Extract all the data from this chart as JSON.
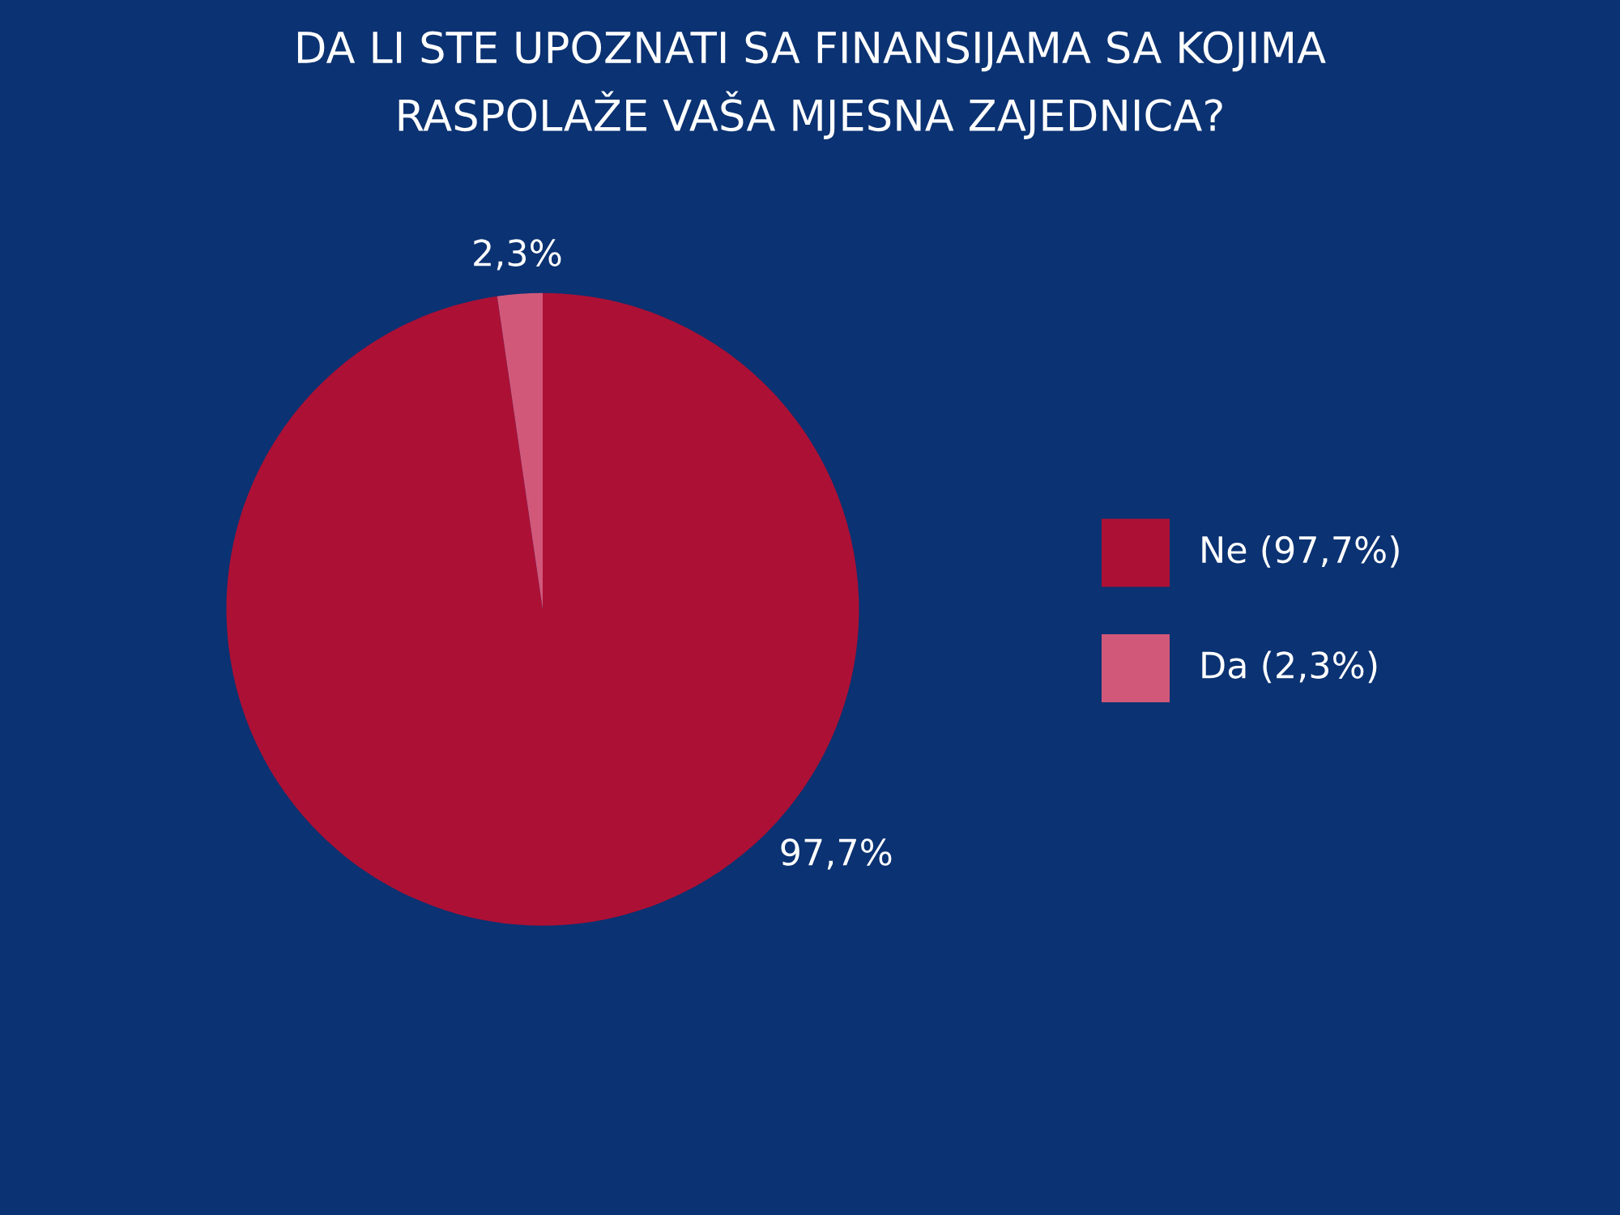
{
  "chart_data": {
    "type": "pie",
    "title": "DA LI STE UPOZNATI SA FINANSIJAMA SA KOJIMA\nRASPOLAŽE VAŠA MJESNA ZAJEDNICA?",
    "categories": [
      "Ne (97,7%)",
      "Da (2,3%)"
    ],
    "values": [
      97.7,
      2.3
    ],
    "colors": [
      "#ad1035",
      "#d2587a"
    ],
    "value_labels": [
      "97,7%",
      "2,3%"
    ],
    "legend": "right"
  }
}
